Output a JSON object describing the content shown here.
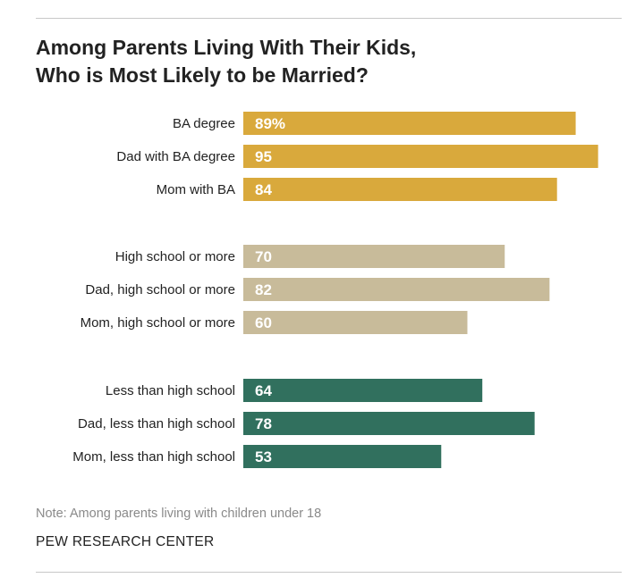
{
  "title_line1": "Among Parents Living With Their Kids,",
  "title_line2": "Who is Most Likely to be Married?",
  "note": "Note: Among parents living with children under 18",
  "source": "PEW RESEARCH CENTER",
  "colors": {
    "gold": "#d9a93c",
    "tan": "#c8bb9a",
    "teal": "#31705e"
  },
  "chart_data": {
    "type": "bar",
    "orientation": "horizontal",
    "xlim": [
      0,
      100
    ],
    "groups": [
      {
        "color": "gold",
        "bars": [
          {
            "label": "BA degree",
            "value": 89,
            "value_label": "89%"
          },
          {
            "label": "Dad with BA degree",
            "value": 95,
            "value_label": "95"
          },
          {
            "label": "Mom with BA",
            "value": 84,
            "value_label": "84"
          }
        ]
      },
      {
        "color": "tan",
        "bars": [
          {
            "label": "High school or more",
            "value": 70,
            "value_label": "70"
          },
          {
            "label": "Dad, high school or more",
            "value": 82,
            "value_label": "82"
          },
          {
            "label": "Mom, high school or more",
            "value": 60,
            "value_label": "60"
          }
        ]
      },
      {
        "color": "teal",
        "bars": [
          {
            "label": "Less than high school",
            "value": 64,
            "value_label": "64"
          },
          {
            "label": "Dad, less than high school",
            "value": 78,
            "value_label": "78"
          },
          {
            "label": "Mom, less than high school",
            "value": 53,
            "value_label": "53"
          }
        ]
      }
    ]
  }
}
